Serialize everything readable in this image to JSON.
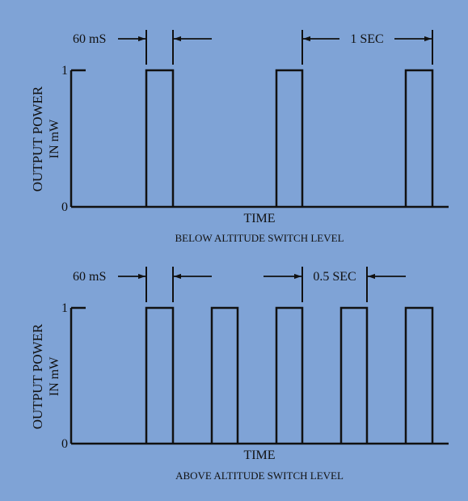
{
  "colors": {
    "background": "#7fa3d6",
    "ink": "#111111"
  },
  "top_panel": {
    "y_axis_label_line1": "OUTPUT POWER",
    "y_axis_label_line2": "IN mW",
    "tick_high": "1",
    "tick_zero": "0",
    "pulse_width_label": "60 mS",
    "period_label": "1 SEC",
    "x_axis_label": "TIME",
    "caption": "BELOW ALTITUDE SWITCH LEVEL",
    "pulse_width_ms": 60,
    "period_s": 1,
    "pulse_count": 3,
    "pulse_level_mw": 1
  },
  "bottom_panel": {
    "y_axis_label_line1": "OUTPUT POWER",
    "y_axis_label_line2": "IN mW",
    "tick_high": "1",
    "tick_zero": "0",
    "pulse_width_label": "60 mS",
    "period_label": "0.5 SEC",
    "x_axis_label": "TIME",
    "caption": "ABOVE ALTITUDE SWITCH LEVEL",
    "pulse_width_ms": 60,
    "period_s": 0.5,
    "pulse_count": 5,
    "pulse_level_mw": 1
  }
}
